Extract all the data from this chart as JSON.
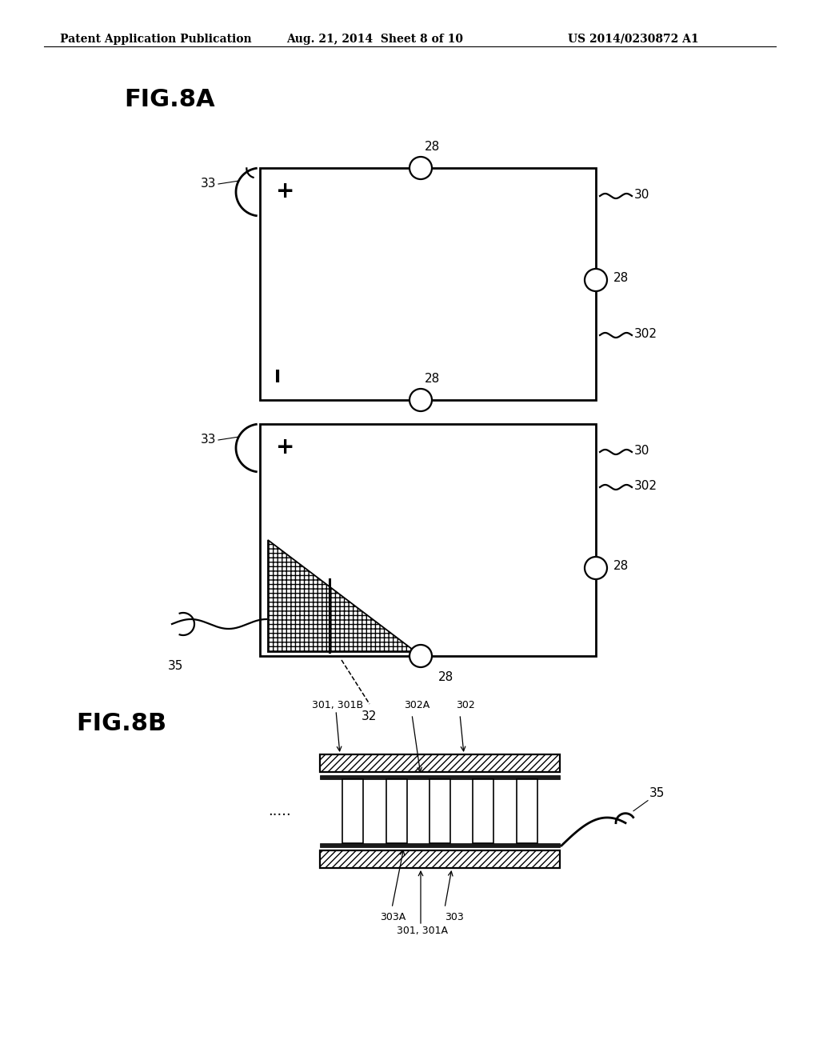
{
  "bg_color": "#ffffff",
  "header_left": "Patent Application Publication",
  "header_mid": "Aug. 21, 2014  Sheet 8 of 10",
  "header_right": "US 2014/0230872 A1",
  "fig8a_label": "FIG.8A",
  "fig8b_label": "FIG.8B",
  "lw": 1.6,
  "lw_thick": 2.0,
  "font_size": 11,
  "label_font_size": 22,
  "circ_r": 14
}
